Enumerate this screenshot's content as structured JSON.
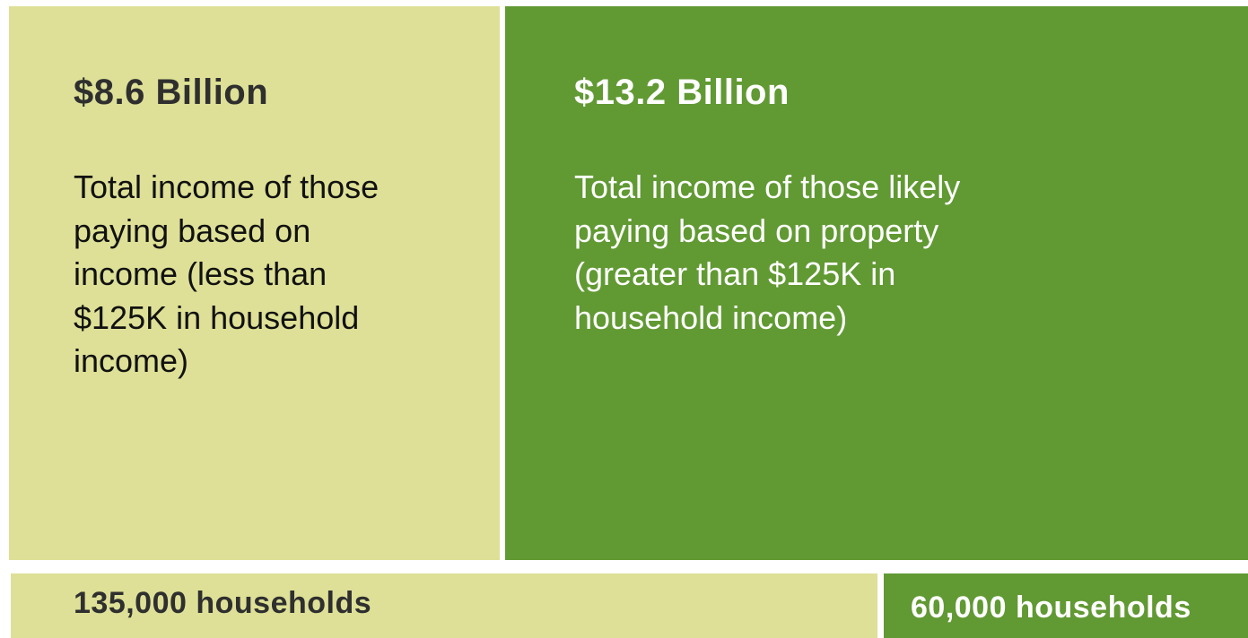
{
  "panels": [
    {
      "heading": "$8.6 Billion",
      "text": [
        "Total income of those",
        "paying based on",
        "income (less than",
        "$125K in household",
        "income)"
      ]
    },
    {
      "heading": "$13.2 Billion",
      "text": [
        "Total income of those likely",
        "paying based on property",
        "(greater than $125K in",
        "household income)"
      ]
    }
  ],
  "footer": [
    {
      "label": "135,000 households"
    },
    {
      "label": "60,000 households"
    }
  ]
}
